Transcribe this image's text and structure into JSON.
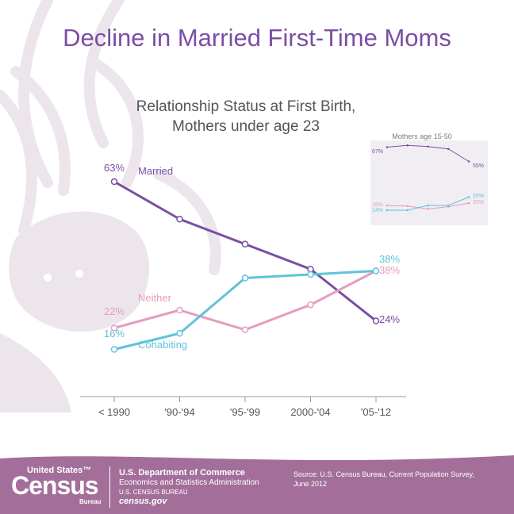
{
  "title": "Decline in Married First-Time Moms",
  "subtitle_line1": "Relationship Status at First Birth,",
  "subtitle_line2": "Mothers under age 23",
  "colors": {
    "married": "#7b4ea3",
    "neither": "#e59cc0",
    "cohabiting": "#5fc3db",
    "title": "#7b4ea3",
    "footer": "#a36f9a",
    "silhouette": "#ece6ec"
  },
  "chart_data": [
    {
      "type": "line",
      "title": "Relationship Status at First Birth, Mothers under age 23",
      "categories": [
        "< 1990",
        "'90-'94",
        "'95-'99",
        "2000-'04",
        "'05-'12"
      ],
      "ylim": [
        0,
        70
      ],
      "grid": false,
      "series": [
        {
          "name": "Married",
          "values": [
            63,
            52.5,
            45.5,
            38.5,
            24
          ],
          "labels": [
            "63%",
            "",
            "",
            "",
            "24%"
          ],
          "color": "#7b4ea3"
        },
        {
          "name": "Neither",
          "values": [
            22,
            27,
            21.5,
            28.5,
            38
          ],
          "labels": [
            "22%",
            "",
            "",
            "",
            "38%"
          ],
          "color": "#e59cc0"
        },
        {
          "name": "Cohabiting",
          "values": [
            16,
            20.5,
            36,
            37,
            38
          ],
          "labels": [
            "16%",
            "",
            "",
            "",
            "38%"
          ],
          "color": "#5fc3db"
        }
      ]
    },
    {
      "type": "line",
      "title": "Mothers age 15-50",
      "categories": [
        "< 1990",
        "'90-'94",
        "'95-'99",
        "2000-'04",
        "'05-'12"
      ],
      "ylim": [
        0,
        70
      ],
      "grid": false,
      "series": [
        {
          "name": "Married",
          "values": [
            67,
            68.5,
            67.5,
            65.5,
            55
          ],
          "labels": [
            "67%",
            "",
            "",
            "",
            "55%"
          ],
          "color": "#7b4ea3"
        },
        {
          "name": "Neither",
          "values": [
            18,
            17.5,
            15,
            17,
            20
          ],
          "labels": [
            "18%",
            "",
            "",
            "",
            "20%"
          ],
          "color": "#e59cc0"
        },
        {
          "name": "Cohabiting",
          "values": [
            14,
            14,
            18,
            18,
            25
          ],
          "labels": [
            "14%",
            "",
            "",
            "",
            "25%"
          ],
          "color": "#5fc3db"
        }
      ]
    }
  ],
  "footer": {
    "logo_top": "United States™",
    "logo_main": "Census",
    "logo_bottom": "Bureau",
    "dept_line1": "U.S. Department of Commerce",
    "dept_line2": "Economics and Statistics Administration",
    "dept_line3": "U.S. CENSUS BUREAU",
    "dept_line4": "census.gov",
    "source": "Source: U.S. Census Bureau, Current Population Survey, June 2012"
  }
}
